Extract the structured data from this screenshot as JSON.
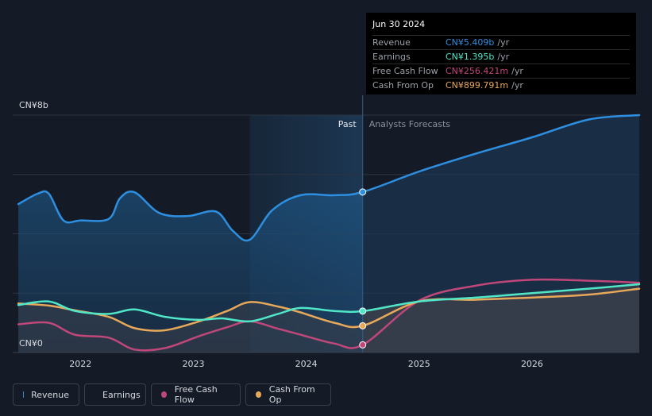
{
  "chart_data": {
    "type": "line",
    "y_axis": {
      "top_label": "CN¥8b",
      "bottom_label": "CN¥0",
      "ylim": [
        0,
        8
      ]
    },
    "x_axis": {
      "ticks": [
        "2022",
        "2023",
        "2024",
        "2025",
        "2026"
      ],
      "xlim": [
        2021.4,
        2026.95
      ]
    },
    "divider": {
      "past_label": "Past",
      "forecast_label": "Analysts Forecasts",
      "at": 2024.5,
      "highlight_start": 2023.5
    },
    "series": [
      {
        "name": "Revenue",
        "color": "#2e8fe0",
        "past": [
          [
            2021.45,
            5.0
          ],
          [
            2021.62,
            5.35
          ],
          [
            2021.72,
            5.35
          ],
          [
            2021.85,
            4.45
          ],
          [
            2022.0,
            4.45
          ],
          [
            2022.25,
            4.5
          ],
          [
            2022.35,
            5.2
          ],
          [
            2022.48,
            5.4
          ],
          [
            2022.7,
            4.7
          ],
          [
            2022.95,
            4.6
          ],
          [
            2023.2,
            4.75
          ],
          [
            2023.35,
            4.1
          ],
          [
            2023.5,
            3.8
          ],
          [
            2023.7,
            4.8
          ],
          [
            2023.95,
            5.3
          ],
          [
            2024.25,
            5.3
          ],
          [
            2024.5,
            5.409
          ]
        ],
        "forecast": [
          [
            2024.5,
            5.409
          ],
          [
            2025.0,
            6.1
          ],
          [
            2025.5,
            6.7
          ],
          [
            2026.0,
            7.25
          ],
          [
            2026.5,
            7.85
          ],
          [
            2026.95,
            8.0
          ]
        ]
      },
      {
        "name": "Earnings",
        "color": "#50e6c8",
        "past": [
          [
            2021.45,
            1.6
          ],
          [
            2021.72,
            1.72
          ],
          [
            2021.95,
            1.4
          ],
          [
            2022.25,
            1.3
          ],
          [
            2022.48,
            1.45
          ],
          [
            2022.75,
            1.2
          ],
          [
            2023.05,
            1.1
          ],
          [
            2023.25,
            1.15
          ],
          [
            2023.5,
            1.05
          ],
          [
            2023.75,
            1.3
          ],
          [
            2023.95,
            1.5
          ],
          [
            2024.25,
            1.4
          ],
          [
            2024.5,
            1.395
          ]
        ],
        "forecast": [
          [
            2024.5,
            1.395
          ],
          [
            2025.0,
            1.72
          ],
          [
            2025.5,
            1.85
          ],
          [
            2026.0,
            2.0
          ],
          [
            2026.5,
            2.15
          ],
          [
            2026.95,
            2.3
          ]
        ]
      },
      {
        "name": "Free Cash Flow",
        "color": "#c0477a",
        "past": [
          [
            2021.45,
            0.95
          ],
          [
            2021.72,
            1.0
          ],
          [
            2021.95,
            0.6
          ],
          [
            2022.25,
            0.5
          ],
          [
            2022.48,
            0.1
          ],
          [
            2022.75,
            0.15
          ],
          [
            2023.05,
            0.55
          ],
          [
            2023.3,
            0.85
          ],
          [
            2023.5,
            1.05
          ],
          [
            2023.75,
            0.8
          ],
          [
            2023.95,
            0.6
          ],
          [
            2024.25,
            0.3
          ],
          [
            2024.5,
            0.256
          ]
        ],
        "forecast": [
          [
            2024.5,
            0.256
          ],
          [
            2025.0,
            1.75
          ],
          [
            2025.5,
            2.25
          ],
          [
            2026.0,
            2.45
          ],
          [
            2026.5,
            2.42
          ],
          [
            2026.95,
            2.35
          ]
        ]
      },
      {
        "name": "Cash From Op",
        "color": "#e8a85a",
        "past": [
          [
            2021.45,
            1.65
          ],
          [
            2021.72,
            1.58
          ],
          [
            2021.95,
            1.42
          ],
          [
            2022.25,
            1.2
          ],
          [
            2022.48,
            0.82
          ],
          [
            2022.75,
            0.75
          ],
          [
            2023.05,
            1.05
          ],
          [
            2023.3,
            1.4
          ],
          [
            2023.5,
            1.7
          ],
          [
            2023.75,
            1.55
          ],
          [
            2023.95,
            1.35
          ],
          [
            2024.25,
            1.0
          ],
          [
            2024.5,
            0.9
          ]
        ],
        "forecast": [
          [
            2024.5,
            0.9
          ],
          [
            2025.0,
            1.72
          ],
          [
            2025.5,
            1.78
          ],
          [
            2026.0,
            1.85
          ],
          [
            2026.5,
            1.95
          ],
          [
            2026.95,
            2.15
          ]
        ]
      }
    ],
    "tooltip": {
      "date": "Jun 30 2024",
      "rows": [
        {
          "label": "Revenue",
          "value": "CN¥5.409b",
          "unit": "/yr",
          "color": "#2e8fe0"
        },
        {
          "label": "Earnings",
          "value": "CN¥1.395b",
          "unit": "/yr",
          "color": "#50e6c8"
        },
        {
          "label": "Free Cash Flow",
          "value": "CN¥256.421m",
          "unit": "/yr",
          "color": "#c0477a"
        },
        {
          "label": "Cash From Op",
          "value": "CN¥899.791m",
          "unit": "/yr",
          "color": "#e8a85a"
        }
      ]
    }
  },
  "legend": [
    {
      "label": "Revenue",
      "color": "#2e8fe0"
    },
    {
      "label": "Earnings",
      "color": "#50e6c8"
    },
    {
      "label": "Free Cash Flow",
      "color": "#c0477a"
    },
    {
      "label": "Cash From Op",
      "color": "#e8a85a"
    }
  ]
}
